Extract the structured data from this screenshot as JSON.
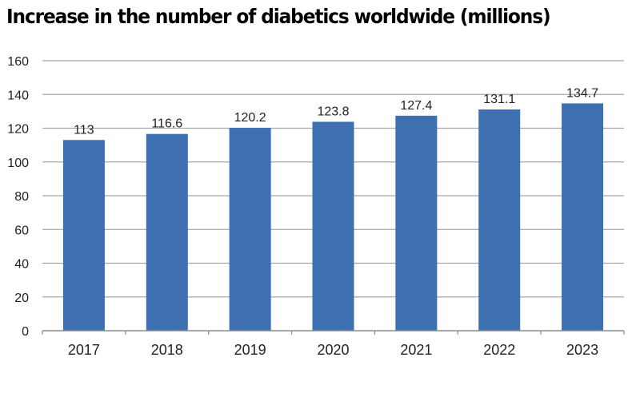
{
  "chart_data": {
    "type": "bar",
    "title": "Increase in the number of diabetics worldwide (millions)",
    "categories": [
      "2017",
      "2018",
      "2019",
      "2020",
      "2021",
      "2022",
      "2023"
    ],
    "values": [
      113,
      116.6,
      120.2,
      123.8,
      127.4,
      131.1,
      134.7
    ],
    "data_labels": [
      "113",
      "116.6",
      "120.2",
      "123.8",
      "127.4",
      "131.1",
      "134.7"
    ],
    "xlabel": "",
    "ylabel": "",
    "ylim": [
      0,
      160
    ],
    "yticks": [
      0,
      20,
      40,
      60,
      80,
      100,
      120,
      140,
      160
    ],
    "grid": true,
    "bar_color": "#3d6fb1"
  }
}
